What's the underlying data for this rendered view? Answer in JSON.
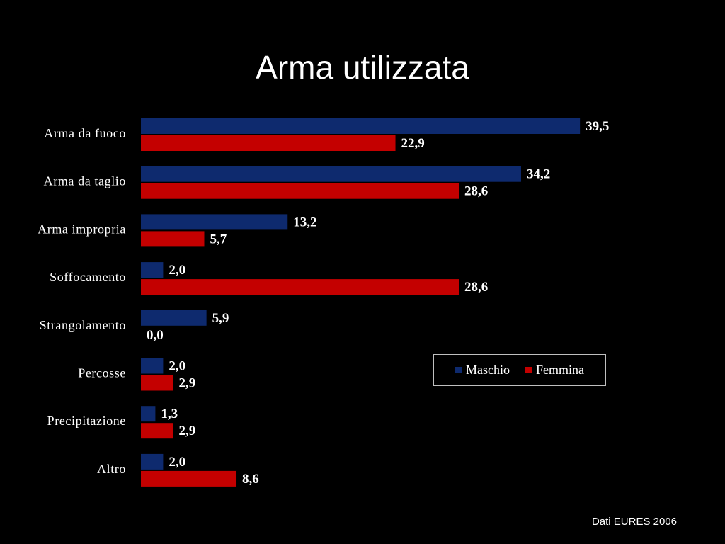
{
  "title": "Arma utilizzata",
  "source": "Dati EURES 2006",
  "colors": {
    "maschio": "#0e2a6e",
    "femmina": "#c40000",
    "background": "#000000"
  },
  "legend": {
    "placement": "bottom-right",
    "items": [
      "Maschio",
      "Femmina"
    ]
  },
  "chart_data": {
    "type": "bar",
    "orientation": "horizontal",
    "categories": [
      "Arma da fuoco",
      "Arma da taglio",
      "Arma impropria",
      "Soffocamento",
      "Strangolamento",
      "Percosse",
      "Precipitazione",
      "Altro"
    ],
    "series": [
      {
        "name": "Maschio",
        "values": [
          39.5,
          34.2,
          13.2,
          2.0,
          5.9,
          2.0,
          1.3,
          2.0
        ],
        "labels": [
          "39,5",
          "34,2",
          "13,2",
          "2,0",
          "5,9",
          "2,0",
          "1,3",
          "2,0"
        ]
      },
      {
        "name": "Femmina",
        "values": [
          22.9,
          28.6,
          5.7,
          28.6,
          0.0,
          2.9,
          2.9,
          8.6
        ],
        "labels": [
          "22,9",
          "28,6",
          "5,7",
          "28,6",
          "0,0",
          "2,9",
          "2,9",
          "8,6"
        ]
      }
    ],
    "xlim": [
      0,
      40
    ],
    "grid": false
  }
}
